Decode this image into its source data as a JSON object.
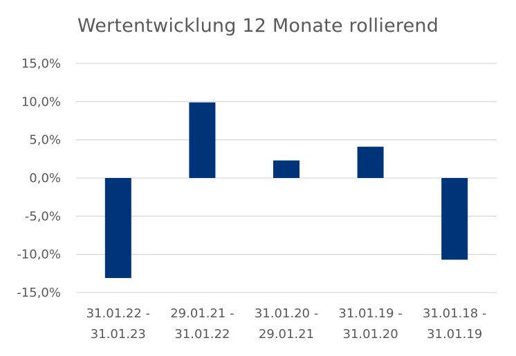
{
  "chart_data": {
    "type": "bar",
    "title": "Wertentwicklung 12 Monate rollierend",
    "xlabel": "",
    "ylabel": "",
    "categories": [
      [
        "31.01.22 -",
        "31.01.23"
      ],
      [
        "29.01.21 -",
        "31.01.22"
      ],
      [
        "31.01.20 -",
        "29.01.21"
      ],
      [
        "31.01.19 -",
        "31.01.20"
      ],
      [
        "31.01.18 -",
        "31.01.19"
      ]
    ],
    "values": [
      -13.1,
      9.9,
      2.3,
      4.1,
      -10.7
    ],
    "ylim": [
      -15,
      15
    ],
    "yticks": [
      15,
      10,
      5,
      0,
      -5,
      -10,
      -15
    ],
    "ytick_labels": [
      "15,0%",
      "10,0%",
      "5,0%",
      "0,0%",
      "-5,0%",
      "-10,0%",
      "-15,0%"
    ],
    "grid": true,
    "colors": {
      "bar": "#003479",
      "grid": "#d9d9d9",
      "text": "#595959"
    }
  }
}
